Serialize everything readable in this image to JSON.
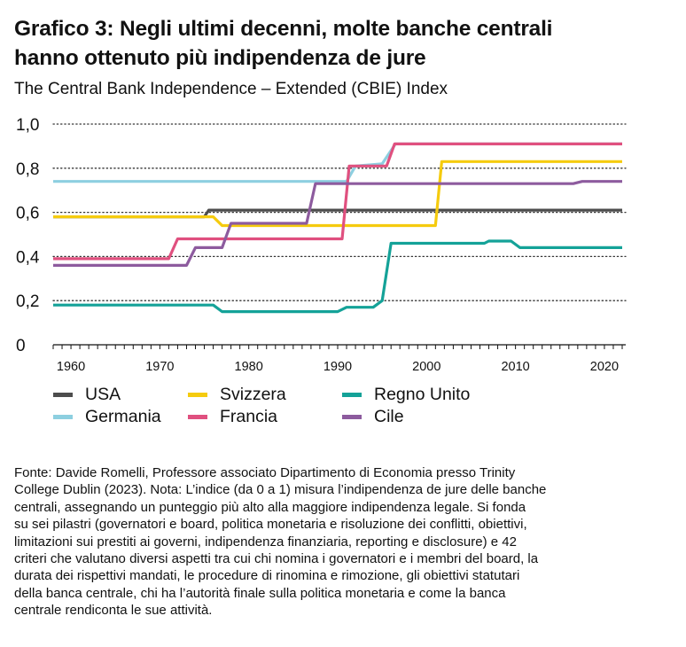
{
  "title_line1": "Grafico 3: Negli ultimi decenni, molte banche centrali",
  "title_line2": "hanno ottenuto più indipendenza de jure",
  "subtitle": "The Central Bank Independence – Extended (CBIE) Index",
  "footnote_lines": [
    "Fonte: Davide Romelli, Professore associato Dipartimento di Economia presso Trinity",
    "College Dublin (2023). Nota: L’indice (da 0 a 1) misura l’indipendenza de jure delle banche",
    "centrali, assegnando un punteggio più alto alla maggiore indipendenza legale. Si fonda",
    "su sei pilastri (governatori e board, politica monetaria e risoluzione dei conflitti, obiettivi,",
    "limitazioni sui prestiti ai governi, indipendenza finanziaria, reporting e disclosure) e 42",
    "criteri che valutano diversi aspetti tra cui chi nomina i governatori e i membri del board, la",
    "durata dei rispettivi mandati, le procedure di rinomina e rimozione, gli obiettivi statutari",
    "della banca centrale, chi ha l’autorità finale sulla politica monetaria e come la banca",
    "centrale rendiconta le sue attività."
  ],
  "chart_data": {
    "type": "line",
    "title": "Grafico 3: Negli ultimi decenni, molte banche centrali hanno ottenuto più indipendenza de jure",
    "subtitle": "The Central Bank Independence – Extended (CBIE) Index",
    "xlabel": "",
    "ylabel": "",
    "xlim": [
      1958,
      2022
    ],
    "ylim": [
      0,
      1
    ],
    "x_ticks": [
      "1960",
      "1970",
      "1980",
      "1990",
      "2000",
      "2010",
      "2020"
    ],
    "x_tick_values": [
      1960,
      1970,
      1980,
      1990,
      2000,
      2010,
      2020
    ],
    "y_ticks": [
      "0",
      "0,2",
      "0,4",
      "0,6",
      "0,8",
      "1,0"
    ],
    "y_tick_values": [
      0,
      0.2,
      0.4,
      0.6,
      0.8,
      1.0
    ],
    "grid": "horizontal dotted",
    "legend_position": "bottom",
    "series": [
      {
        "name": "USA",
        "color": "#4d4d4d",
        "x": [
          1958,
          1975,
          1975.5,
          2022
        ],
        "y": [
          0.58,
          0.58,
          0.61,
          0.61
        ]
      },
      {
        "name": "Germania",
        "color": "#8dcfe0",
        "x": [
          1958,
          1991,
          1992,
          1995,
          1996.5,
          2022
        ],
        "y": [
          0.74,
          0.74,
          0.81,
          0.82,
          0.91,
          0.91
        ]
      },
      {
        "name": "Svizzera",
        "color": "#f5cb0e",
        "x": [
          1958,
          1976,
          1977,
          2001,
          2001.7,
          2022
        ],
        "y": [
          0.58,
          0.58,
          0.54,
          0.54,
          0.83,
          0.83
        ]
      },
      {
        "name": "Francia",
        "color": "#e0507f",
        "x": [
          1958,
          1971,
          1972,
          1990.5,
          1991.3,
          1995.5,
          1996.4,
          2022
        ],
        "y": [
          0.39,
          0.39,
          0.48,
          0.48,
          0.81,
          0.81,
          0.91,
          0.91
        ]
      },
      {
        "name": "Regno Unito",
        "color": "#14a298",
        "x": [
          1958,
          1976,
          1977,
          1990,
          1991,
          1994,
          1995,
          1996,
          2006.5,
          2007,
          2009.5,
          2010.5,
          2022
        ],
        "y": [
          0.18,
          0.18,
          0.15,
          0.15,
          0.17,
          0.17,
          0.2,
          0.46,
          0.46,
          0.47,
          0.47,
          0.44,
          0.44
        ]
      },
      {
        "name": "Cile",
        "color": "#8d5b9e",
        "x": [
          1958,
          1973,
          1974,
          1977,
          1978,
          1986.5,
          1987.5,
          2016.5,
          2017.5,
          2022
        ],
        "y": [
          0.36,
          0.36,
          0.44,
          0.44,
          0.55,
          0.55,
          0.73,
          0.73,
          0.74,
          0.74
        ]
      }
    ]
  }
}
